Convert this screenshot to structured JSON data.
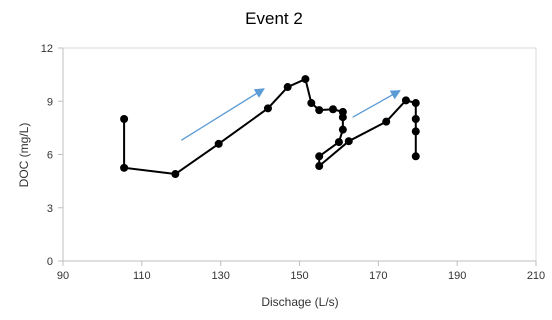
{
  "chart_data": {
    "type": "scatter",
    "title": "Event 2",
    "xlabel": "Dischage (L/s)",
    "ylabel": "DOC (mg/L)",
    "xlim": [
      90,
      210
    ],
    "ylim": [
      0,
      12
    ],
    "x_ticks": [
      90,
      110,
      130,
      150,
      170,
      190,
      210
    ],
    "y_ticks": [
      0,
      3,
      6,
      9,
      12
    ],
    "grid": false,
    "legend": "none",
    "series": [
      {
        "color": "#000000",
        "points": [
          {
            "x": 105.5,
            "y": 8.0
          },
          {
            "x": 105.5,
            "y": 5.25
          },
          {
            "x": 118.5,
            "y": 4.9
          },
          {
            "x": 129.5,
            "y": 6.6
          },
          {
            "x": 142.0,
            "y": 8.6
          },
          {
            "x": 147.0,
            "y": 9.8
          },
          {
            "x": 151.5,
            "y": 10.25
          },
          {
            "x": 153.0,
            "y": 8.9
          },
          {
            "x": 155.0,
            "y": 8.5
          },
          {
            "x": 158.5,
            "y": 8.55
          },
          {
            "x": 161.0,
            "y": 8.4
          },
          {
            "x": 161.0,
            "y": 8.1
          },
          {
            "x": 161.0,
            "y": 7.4
          },
          {
            "x": 160.0,
            "y": 6.7
          },
          {
            "x": 155.0,
            "y": 5.9
          },
          {
            "x": 155.0,
            "y": 5.35
          },
          {
            "x": 162.5,
            "y": 6.75
          },
          {
            "x": 172.0,
            "y": 7.85
          },
          {
            "x": 177.0,
            "y": 9.05
          },
          {
            "x": 179.5,
            "y": 8.9
          },
          {
            "x": 179.5,
            "y": 8.0
          },
          {
            "x": 179.5,
            "y": 7.3
          },
          {
            "x": 179.5,
            "y": 5.9
          }
        ]
      }
    ],
    "annotations": [
      {
        "type": "arrow",
        "color": "#5b9bd5",
        "from": {
          "x": 120,
          "y": 6.8
        },
        "to": {
          "x": 141,
          "y": 9.7
        }
      },
      {
        "type": "arrow",
        "color": "#5b9bd5",
        "from": {
          "x": 163.5,
          "y": 8.1
        },
        "to": {
          "x": 175.5,
          "y": 9.6
        }
      }
    ]
  }
}
